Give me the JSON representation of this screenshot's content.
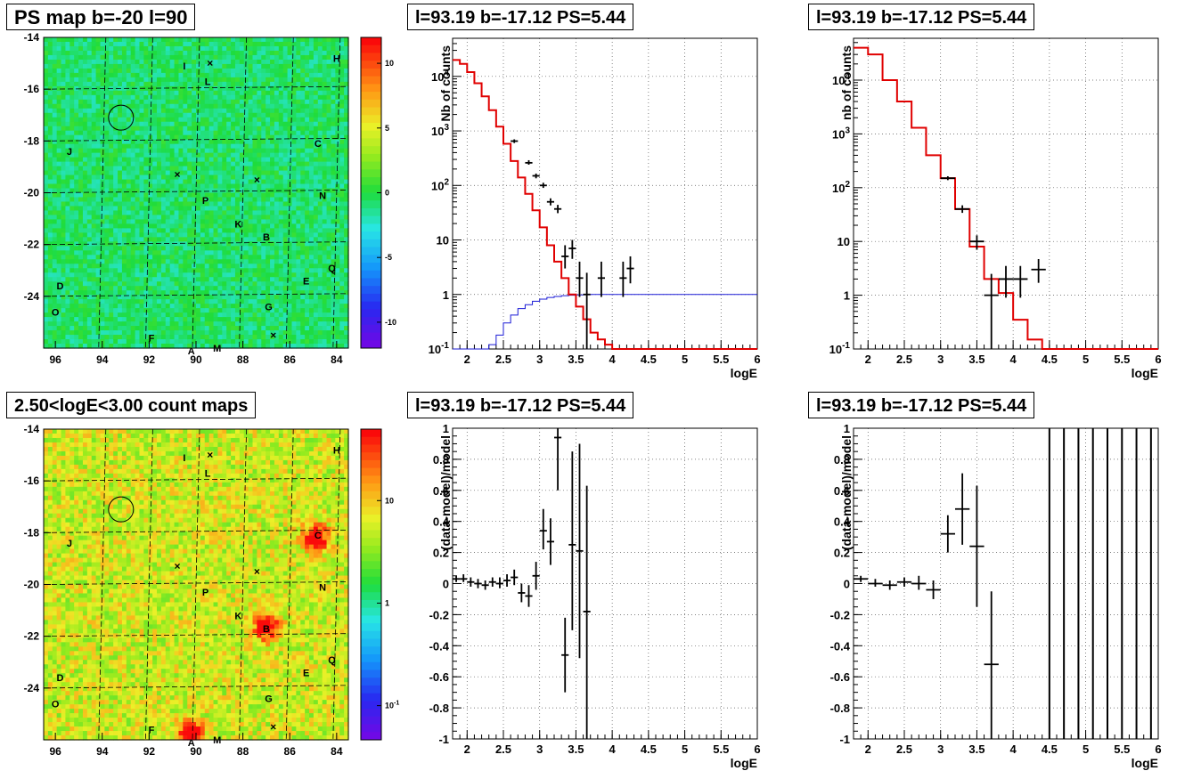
{
  "chart_data": [
    {
      "type": "heatmap",
      "title": "PS map b=-20 l=90",
      "xticks": [
        96,
        94,
        92,
        90,
        88,
        86,
        84
      ],
      "yticks": [
        -14,
        -16,
        -18,
        -20,
        -22,
        -24
      ],
      "xlim": [
        96.5,
        83.5
      ],
      "ylim": [
        -26,
        -14
      ],
      "colorbar_ticks": [
        10,
        5,
        0,
        -5,
        -10
      ],
      "colorbar_range": [
        -12,
        12
      ],
      "circle": {
        "x": 93.2,
        "y": -17.1
      },
      "labels": [
        {
          "text": "I",
          "x": 90.5,
          "y": -15.1
        },
        {
          "text": "L",
          "x": 89.5,
          "y": -15.7
        },
        {
          "text": "H",
          "x": 84.0,
          "y": -14.8
        },
        {
          "text": "J",
          "x": 95.4,
          "y": -18.4
        },
        {
          "text": "C",
          "x": 84.8,
          "y": -18.1
        },
        {
          "text": "P",
          "x": 89.6,
          "y": -20.3
        },
        {
          "text": "N",
          "x": 84.6,
          "y": -20.1
        },
        {
          "text": "K",
          "x": 88.2,
          "y": -21.2
        },
        {
          "text": "B",
          "x": 87.0,
          "y": -21.7
        },
        {
          "text": "Q",
          "x": 84.2,
          "y": -22.9
        },
        {
          "text": "E",
          "x": 85.3,
          "y": -23.4
        },
        {
          "text": "D",
          "x": 95.8,
          "y": -23.6
        },
        {
          "text": "O",
          "x": 96.0,
          "y": -24.6
        },
        {
          "text": "G",
          "x": 86.9,
          "y": -24.4
        },
        {
          "text": "F",
          "x": 91.9,
          "y": -25.6
        },
        {
          "text": "A",
          "x": 90.2,
          "y": -26.1
        },
        {
          "text": "M",
          "x": 89.1,
          "y": -26.0
        }
      ],
      "crosses": [
        {
          "x": 89.4,
          "y": -15.0
        },
        {
          "x": 90.8,
          "y": -19.3
        },
        {
          "x": 87.4,
          "y": -19.5
        },
        {
          "x": 86.7,
          "y": -25.5
        }
      ]
    },
    {
      "type": "heatmap",
      "title": "2.50<logE<3.00 count maps",
      "xticks": [
        96,
        94,
        92,
        90,
        88,
        86,
        84
      ],
      "yticks": [
        -14,
        -16,
        -18,
        -20,
        -22,
        -24
      ],
      "xlim": [
        96.5,
        83.5
      ],
      "ylim": [
        -26,
        -14
      ],
      "colorbar_ticks": [
        10,
        1,
        "10^-1"
      ],
      "colorbar_scale": "log",
      "hotspots": [
        {
          "name": "C",
          "x": 84.9,
          "y": -18.2
        },
        {
          "name": "B",
          "x": 87.0,
          "y": -21.6
        },
        {
          "name": "A",
          "x": 90.2,
          "y": -25.8
        }
      ],
      "circle": {
        "x": 93.2,
        "y": -17.1
      },
      "labels": [
        {
          "text": "I",
          "x": 90.5,
          "y": -15.1
        },
        {
          "text": "L",
          "x": 89.5,
          "y": -15.7
        },
        {
          "text": "H",
          "x": 84.0,
          "y": -14.8
        },
        {
          "text": "J",
          "x": 95.4,
          "y": -18.4
        },
        {
          "text": "C",
          "x": 84.8,
          "y": -18.1
        },
        {
          "text": "P",
          "x": 89.6,
          "y": -20.3
        },
        {
          "text": "N",
          "x": 84.6,
          "y": -20.1
        },
        {
          "text": "K",
          "x": 88.2,
          "y": -21.2
        },
        {
          "text": "B",
          "x": 87.0,
          "y": -21.7
        },
        {
          "text": "Q",
          "x": 84.2,
          "y": -22.9
        },
        {
          "text": "E",
          "x": 85.3,
          "y": -23.4
        },
        {
          "text": "D",
          "x": 95.8,
          "y": -23.6
        },
        {
          "text": "O",
          "x": 96.0,
          "y": -24.6
        },
        {
          "text": "G",
          "x": 86.9,
          "y": -24.4
        },
        {
          "text": "F",
          "x": 91.9,
          "y": -25.6
        },
        {
          "text": "A",
          "x": 90.2,
          "y": -26.1
        },
        {
          "text": "M",
          "x": 89.1,
          "y": -26.0
        }
      ],
      "crosses": [
        {
          "x": 89.4,
          "y": -15.0
        },
        {
          "x": 90.8,
          "y": -19.3
        },
        {
          "x": 87.4,
          "y": -19.5
        },
        {
          "x": 86.7,
          "y": -25.5
        }
      ]
    },
    {
      "type": "line",
      "title": "l=93.19 b=-17.12 PS=5.44",
      "xlabel": "logE",
      "ylabel": "Nb of counts",
      "xlim": [
        1.8,
        6
      ],
      "ylim": [
        0.1,
        50000
      ],
      "yscale": "log",
      "xticks": [
        2,
        2.5,
        3,
        3.5,
        4,
        4.5,
        5,
        5.5,
        6
      ],
      "yticks": [
        {
          "v": 0.1,
          "l": "10^-1"
        },
        {
          "v": 1,
          "l": "1"
        },
        {
          "v": 10,
          "l": "10"
        },
        {
          "v": 100,
          "l": "10^2"
        },
        {
          "v": 1000,
          "l": "10^3"
        },
        {
          "v": 10000,
          "l": "10^4"
        }
      ],
      "model_step": {
        "color": "#e00000",
        "edges": [
          1.8,
          1.9,
          2.0,
          2.1,
          2.2,
          2.3,
          2.4,
          2.5,
          2.6,
          2.7,
          2.8,
          2.9,
          3.0,
          3.1,
          3.2,
          3.3,
          3.4,
          3.5,
          3.6,
          3.7,
          3.8,
          3.9,
          4.0,
          4.1,
          6.0
        ],
        "values": [
          20000,
          17000,
          12000,
          7500,
          4300,
          2400,
          1200,
          580,
          280,
          140,
          70,
          35,
          17,
          8,
          4,
          2,
          1,
          0.6,
          0.35,
          0.2,
          0.15,
          0.12,
          0.1,
          0.1
        ]
      },
      "blue_step": {
        "color": "#1a1ad6",
        "edges": [
          1.8,
          2.2,
          2.3,
          2.4,
          2.5,
          2.6,
          2.7,
          2.8,
          2.9,
          3.0,
          3.1,
          3.2,
          3.3,
          3.4,
          3.5,
          3.6,
          3.7,
          6.0
        ],
        "values": [
          0.1,
          0.1,
          0.12,
          0.18,
          0.3,
          0.42,
          0.55,
          0.65,
          0.75,
          0.82,
          0.88,
          0.92,
          0.95,
          0.97,
          0.98,
          0.99,
          1.0
        ]
      },
      "points": [
        {
          "x": 2.65,
          "y": 650,
          "xerr": 0.05,
          "ylo": 600,
          "yhi": 700
        },
        {
          "x": 2.85,
          "y": 260,
          "xerr": 0.05,
          "ylo": 240,
          "yhi": 290
        },
        {
          "x": 2.95,
          "y": 150,
          "xerr": 0.05,
          "ylo": 135,
          "yhi": 165
        },
        {
          "x": 3.05,
          "y": 100,
          "xerr": 0.05,
          "ylo": 90,
          "yhi": 112
        },
        {
          "x": 3.15,
          "y": 50,
          "xerr": 0.05,
          "ylo": 43,
          "yhi": 58
        },
        {
          "x": 3.25,
          "y": 37,
          "xerr": 0.05,
          "ylo": 31,
          "yhi": 44
        },
        {
          "x": 3.35,
          "y": 5,
          "xerr": 0.05,
          "ylo": 3,
          "yhi": 8
        },
        {
          "x": 3.45,
          "y": 7,
          "xerr": 0.05,
          "ylo": 4.5,
          "yhi": 10
        },
        {
          "x": 3.55,
          "y": 2,
          "xerr": 0.05,
          "ylo": 0.9,
          "yhi": 4
        },
        {
          "x": 3.65,
          "y": 1,
          "xerr": 0.05,
          "ylo": 0.1,
          "yhi": 2.5
        },
        {
          "x": 3.85,
          "y": 2,
          "xerr": 0.05,
          "ylo": 0.9,
          "yhi": 4
        },
        {
          "x": 4.15,
          "y": 2,
          "xerr": 0.05,
          "ylo": 0.9,
          "yhi": 4
        },
        {
          "x": 4.25,
          "y": 3,
          "xerr": 0.05,
          "ylo": 1.6,
          "yhi": 5
        }
      ]
    },
    {
      "type": "line",
      "title": "l=93.19 b=-17.12 PS=5.44",
      "xlabel": "logE",
      "ylabel": "nb of counts",
      "xlim": [
        1.8,
        6
      ],
      "ylim": [
        0.1,
        60000
      ],
      "yscale": "log",
      "xticks": [
        2,
        2.5,
        3,
        3.5,
        4,
        4.5,
        5,
        5.5,
        6
      ],
      "yticks": [
        {
          "v": 0.1,
          "l": "10^-1"
        },
        {
          "v": 1,
          "l": "1"
        },
        {
          "v": 10,
          "l": "10"
        },
        {
          "v": 100,
          "l": "10^2"
        },
        {
          "v": 1000,
          "l": "10^3"
        },
        {
          "v": 10000,
          "l": "10^4"
        }
      ],
      "model_step": {
        "color": "#e00000",
        "edges": [
          1.8,
          2.0,
          2.2,
          2.4,
          2.6,
          2.8,
          3.0,
          3.2,
          3.4,
          3.6,
          3.8,
          4.0,
          4.2,
          4.4,
          6.0
        ],
        "values": [
          40000,
          30000,
          10000,
          4000,
          1300,
          400,
          150,
          40,
          8,
          2,
          1.1,
          0.35,
          0.15,
          0.1
        ]
      },
      "points": [
        {
          "x": 3.1,
          "y": 150,
          "xerr": 0.1,
          "ylo": 138,
          "yhi": 163
        },
        {
          "x": 3.3,
          "y": 40,
          "xerr": 0.1,
          "ylo": 34,
          "yhi": 47
        },
        {
          "x": 3.5,
          "y": 10,
          "xerr": 0.1,
          "ylo": 7,
          "yhi": 13
        },
        {
          "x": 3.7,
          "y": 1,
          "xerr": 0.1,
          "ylo": 0.1,
          "yhi": 2.5
        },
        {
          "x": 3.9,
          "y": 2,
          "xerr": 0.1,
          "ylo": 0.9,
          "yhi": 3.5
        },
        {
          "x": 4.1,
          "y": 2,
          "xerr": 0.1,
          "ylo": 0.9,
          "yhi": 3.5
        },
        {
          "x": 4.35,
          "y": 3,
          "xerr": 0.1,
          "ylo": 1.7,
          "yhi": 4.7
        }
      ]
    },
    {
      "type": "scatter",
      "title": "l=93.19 b=-17.12 PS=5.44",
      "xlabel": "logE",
      "ylabel": "(data-model)/model",
      "xlim": [
        1.8,
        6
      ],
      "ylim": [
        -1,
        1
      ],
      "xticks": [
        2,
        2.5,
        3,
        3.5,
        4,
        4.5,
        5,
        5.5,
        6
      ],
      "yticks": [
        -1,
        -0.8,
        -0.6,
        -0.4,
        -0.2,
        0,
        0.2,
        0.4,
        0.6,
        0.8,
        1
      ],
      "points": [
        {
          "x": 1.85,
          "y": 0.03,
          "xerr": 0.05,
          "ylo": 0.01,
          "yhi": 0.05
        },
        {
          "x": 1.95,
          "y": 0.03,
          "xerr": 0.05,
          "ylo": 0.01,
          "yhi": 0.06
        },
        {
          "x": 2.05,
          "y": 0.01,
          "xerr": 0.05,
          "ylo": -0.02,
          "yhi": 0.04
        },
        {
          "x": 2.15,
          "y": 0.0,
          "xerr": 0.05,
          "ylo": -0.03,
          "yhi": 0.03
        },
        {
          "x": 2.25,
          "y": -0.01,
          "xerr": 0.05,
          "ylo": -0.04,
          "yhi": 0.02
        },
        {
          "x": 2.35,
          "y": 0.01,
          "xerr": 0.05,
          "ylo": -0.02,
          "yhi": 0.04
        },
        {
          "x": 2.45,
          "y": 0.0,
          "xerr": 0.05,
          "ylo": -0.03,
          "yhi": 0.04
        },
        {
          "x": 2.55,
          "y": 0.02,
          "xerr": 0.05,
          "ylo": -0.02,
          "yhi": 0.06
        },
        {
          "x": 2.65,
          "y": 0.04,
          "xerr": 0.05,
          "ylo": -0.01,
          "yhi": 0.09
        },
        {
          "x": 2.75,
          "y": -0.06,
          "xerr": 0.05,
          "ylo": -0.12,
          "yhi": 0.0
        },
        {
          "x": 2.85,
          "y": -0.08,
          "xerr": 0.05,
          "ylo": -0.15,
          "yhi": -0.01
        },
        {
          "x": 2.95,
          "y": 0.05,
          "xerr": 0.05,
          "ylo": -0.04,
          "yhi": 0.14
        },
        {
          "x": 3.05,
          "y": 0.34,
          "xerr": 0.05,
          "ylo": 0.22,
          "yhi": 0.48
        },
        {
          "x": 3.15,
          "y": 0.27,
          "xerr": 0.05,
          "ylo": 0.12,
          "yhi": 0.42
        },
        {
          "x": 3.25,
          "y": 0.94,
          "xerr": 0.05,
          "ylo": 0.6,
          "yhi": 1.0
        },
        {
          "x": 3.35,
          "y": -0.46,
          "xerr": 0.05,
          "ylo": -0.7,
          "yhi": -0.22
        },
        {
          "x": 3.45,
          "y": 0.25,
          "xerr": 0.05,
          "ylo": -0.3,
          "yhi": 0.85
        },
        {
          "x": 3.55,
          "y": 0.21,
          "xerr": 0.05,
          "ylo": -0.48,
          "yhi": 0.9
        },
        {
          "x": 3.65,
          "y": -0.18,
          "xerr": 0.05,
          "ylo": -1.0,
          "yhi": 0.63
        }
      ]
    },
    {
      "type": "scatter",
      "title": "l=93.19 b=-17.12 PS=5.44",
      "xlabel": "logE",
      "ylabel": "(data-model)/model",
      "xlim": [
        1.8,
        6
      ],
      "ylim": [
        -1,
        1
      ],
      "xticks": [
        2,
        2.5,
        3,
        3.5,
        4,
        4.5,
        5,
        5.5,
        6
      ],
      "yticks": [
        -1,
        -0.8,
        -0.6,
        -0.4,
        -0.2,
        0,
        0.2,
        0.4,
        0.6,
        0.8,
        1
      ],
      "points": [
        {
          "x": 1.9,
          "y": 0.03,
          "xerr": 0.1,
          "ylo": 0.01,
          "yhi": 0.05
        },
        {
          "x": 2.1,
          "y": 0.0,
          "xerr": 0.1,
          "ylo": -0.02,
          "yhi": 0.03
        },
        {
          "x": 2.3,
          "y": -0.01,
          "xerr": 0.1,
          "ylo": -0.04,
          "yhi": 0.02
        },
        {
          "x": 2.5,
          "y": 0.01,
          "xerr": 0.1,
          "ylo": -0.02,
          "yhi": 0.04
        },
        {
          "x": 2.7,
          "y": 0.0,
          "xerr": 0.1,
          "ylo": -0.04,
          "yhi": 0.05
        },
        {
          "x": 2.9,
          "y": -0.04,
          "xerr": 0.1,
          "ylo": -0.1,
          "yhi": 0.02
        },
        {
          "x": 3.1,
          "y": 0.32,
          "xerr": 0.1,
          "ylo": 0.2,
          "yhi": 0.44
        },
        {
          "x": 3.3,
          "y": 0.48,
          "xerr": 0.1,
          "ylo": 0.25,
          "yhi": 0.71
        },
        {
          "x": 3.5,
          "y": 0.24,
          "xerr": 0.1,
          "ylo": -0.15,
          "yhi": 0.63
        },
        {
          "x": 3.7,
          "y": -0.52,
          "xerr": 0.1,
          "ylo": -1.0,
          "yhi": -0.05
        }
      ],
      "vertical_bars": [
        4.5,
        4.7,
        4.9,
        5.1,
        5.3,
        5.5,
        5.7,
        5.9
      ]
    }
  ]
}
